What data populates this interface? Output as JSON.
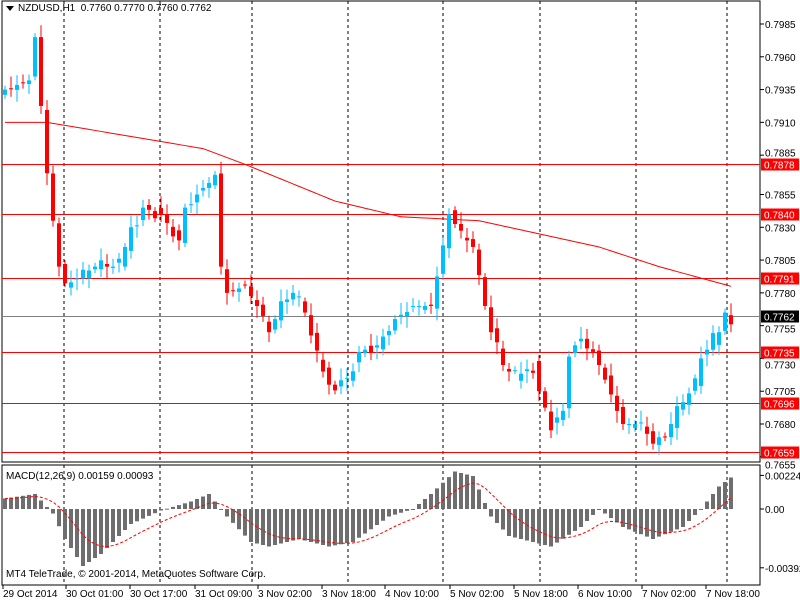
{
  "header": {
    "symbol": "NZDUSD,H1",
    "ohlc": "0.7760 0.7770 0.7760 0.7762"
  },
  "macd": {
    "label": "MACD(12,26,9) 0.00159 0.00093",
    "axis": [
      "0.00224",
      "0.00",
      "-0.00392"
    ]
  },
  "copyright": "MT4 TeleTrade, © 2001-2014, MetaQuotes Software Corp.",
  "colors": {
    "up": "#00BFFF",
    "down": "#FF0000",
    "level": "#FF0000",
    "ma": "#FF0000",
    "hist": "#6E6E6E",
    "signal": "#FF0000",
    "current": "#808080"
  },
  "chart_data": {
    "type": "candlestick",
    "symbol": "NZDUSD",
    "timeframe": "H1",
    "price_ticks": [
      "0.7985",
      "0.7960",
      "0.7935",
      "0.7910",
      "0.7885",
      "0.7855",
      "0.7830",
      "0.7805",
      "0.7780",
      "0.7755",
      "0.7730",
      "0.7705",
      "0.7680",
      "0.7655"
    ],
    "ylim": [
      0.7647,
      0.8002
    ],
    "levels": [
      0.7878,
      0.784,
      0.7791,
      0.7735,
      0.7696,
      0.7659
    ],
    "level_labels": [
      "0.7878",
      "0.7840",
      "0.7791",
      "0.7735",
      "0.7696",
      "0.7659"
    ],
    "current_price": "0.7762",
    "time_labels": [
      "29 Oct 2014",
      "30 Oct 01:00",
      "30 Oct 17:00",
      "31 Oct 09:00",
      "3 Nov 02:00",
      "3 Nov 18:00",
      "4 Nov 10:00",
      "5 Nov 02:00",
      "5 Nov 18:00",
      "6 Nov 10:00",
      "7 Nov 02:00",
      "7 Nov 18:00"
    ],
    "bars": 122,
    "close_keypoints": [
      [
        0,
        0.7935
      ],
      [
        4,
        0.7942
      ],
      [
        5,
        0.7975
      ],
      [
        7,
        0.787
      ],
      [
        8,
        0.7835
      ],
      [
        9,
        0.78
      ],
      [
        10,
        0.7785
      ],
      [
        15,
        0.78
      ],
      [
        19,
        0.78
      ],
      [
        21,
        0.783
      ],
      [
        23,
        0.7845
      ],
      [
        26,
        0.784
      ],
      [
        29,
        0.782
      ],
      [
        30,
        0.7845
      ],
      [
        33,
        0.786
      ],
      [
        35,
        0.787
      ],
      [
        36,
        0.78
      ],
      [
        37,
        0.778
      ],
      [
        40,
        0.7785
      ],
      [
        42,
        0.777
      ],
      [
        44,
        0.775
      ],
      [
        46,
        0.777
      ],
      [
        48,
        0.778
      ],
      [
        50,
        0.7765
      ],
      [
        52,
        0.773
      ],
      [
        54,
        0.771
      ],
      [
        57,
        0.7715
      ],
      [
        59,
        0.7735
      ],
      [
        62,
        0.774
      ],
      [
        65,
        0.776
      ],
      [
        68,
        0.777
      ],
      [
        71,
        0.777
      ],
      [
        73,
        0.7815
      ],
      [
        74,
        0.784
      ],
      [
        76,
        0.7825
      ],
      [
        78,
        0.7815
      ],
      [
        79,
        0.779
      ],
      [
        81,
        0.775
      ],
      [
        83,
        0.7725
      ],
      [
        85,
        0.7715
      ],
      [
        88,
        0.7725
      ],
      [
        89,
        0.7705
      ],
      [
        91,
        0.768
      ],
      [
        93,
        0.769
      ],
      [
        94,
        0.7735
      ],
      [
        96,
        0.7745
      ],
      [
        98,
        0.7735
      ],
      [
        100,
        0.7715
      ],
      [
        102,
        0.769
      ],
      [
        103,
        0.768
      ],
      [
        106,
        0.768
      ],
      [
        108,
        0.7665
      ],
      [
        110,
        0.767
      ],
      [
        112,
        0.769
      ],
      [
        115,
        0.771
      ],
      [
        116,
        0.773
      ],
      [
        119,
        0.775
      ],
      [
        120,
        0.7765
      ],
      [
        121,
        0.7762
      ]
    ],
    "ma_keypoints": [
      [
        0,
        0.791
      ],
      [
        7,
        0.791
      ],
      [
        33,
        0.789
      ],
      [
        40,
        0.7878
      ],
      [
        55,
        0.785
      ],
      [
        66,
        0.7838
      ],
      [
        79,
        0.7835
      ],
      [
        89,
        0.7825
      ],
      [
        99,
        0.7815
      ],
      [
        109,
        0.78
      ],
      [
        121,
        0.7785
      ]
    ],
    "macd_hist_keypoints": [
      [
        0,
        0.0007
      ],
      [
        5,
        0.001
      ],
      [
        8,
        -0.0003
      ],
      [
        10,
        -0.002
      ],
      [
        13,
        -0.0038
      ],
      [
        16,
        -0.003
      ],
      [
        21,
        -0.001
      ],
      [
        26,
        -0.0001
      ],
      [
        31,
        0.0005
      ],
      [
        34,
        0.001
      ],
      [
        37,
        -0.0005
      ],
      [
        41,
        -0.0022
      ],
      [
        44,
        -0.0025
      ],
      [
        49,
        -0.002
      ],
      [
        54,
        -0.0025
      ],
      [
        58,
        -0.0022
      ],
      [
        64,
        -0.0005
      ],
      [
        68,
        0.0
      ],
      [
        71,
        0.001
      ],
      [
        75,
        0.0025
      ],
      [
        78,
        0.0022
      ],
      [
        81,
        -0.0005
      ],
      [
        84,
        -0.0018
      ],
      [
        91,
        -0.0025
      ],
      [
        96,
        -0.0012
      ],
      [
        99,
        0.0
      ],
      [
        103,
        -0.0012
      ],
      [
        108,
        -0.002
      ],
      [
        113,
        -0.0012
      ],
      [
        116,
        0.0
      ],
      [
        119,
        0.0015
      ],
      [
        121,
        0.0021
      ]
    ]
  }
}
